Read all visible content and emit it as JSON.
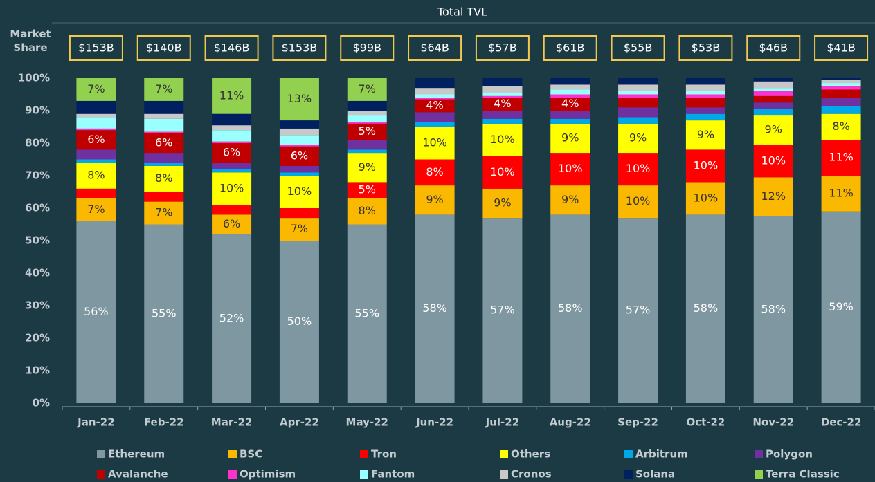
{
  "chart_data": {
    "type": "stacked_bar",
    "y_label": "Market Share",
    "categories": [
      "Jan-22",
      "Feb-22",
      "Mar-22",
      "Apr-22",
      "May-22",
      "Jun-22",
      "Jul-22",
      "Aug-22",
      "Sep-22",
      "Oct-22",
      "Nov-22",
      "Dec-22"
    ],
    "ylim": [
      0,
      100
    ],
    "yticks": [
      {
        "value": 0,
        "label": "0%"
      },
      {
        "value": 10,
        "label": "10%"
      },
      {
        "value": 20,
        "label": "20%"
      },
      {
        "value": 30,
        "label": "30%"
      },
      {
        "value": 40,
        "label": "40%"
      },
      {
        "value": 50,
        "label": "50%"
      },
      {
        "value": 60,
        "label": "60%"
      },
      {
        "value": 70,
        "label": "70%"
      },
      {
        "value": 80,
        "label": "80%"
      },
      {
        "value": 90,
        "label": "90%"
      },
      {
        "value": 100,
        "label": "100%"
      }
    ],
    "total_tvl": {
      "title": "Total TVL",
      "values": [
        153,
        140,
        146,
        153,
        99,
        64,
        57,
        61,
        55,
        53,
        46,
        41
      ],
      "value_labels": [
        "$153B",
        "$140B",
        "$146B",
        "$153B",
        "$99B",
        "$64B",
        "$57B",
        "$61B",
        "$55B",
        "$53B",
        "$46B",
        "$41B"
      ]
    },
    "series": [
      {
        "name": "Ethereum",
        "color": "#7f97a0",
        "values": [
          56,
          55,
          52,
          50,
          55,
          58,
          57,
          58,
          57,
          58,
          57.5,
          59
        ],
        "value_labels": [
          "56%",
          "55%",
          "52%",
          "50%",
          "55%",
          "58%",
          "57%",
          "58%",
          "57%",
          "58%",
          "58%",
          "59%"
        ]
      },
      {
        "name": "BSC",
        "color": "#fbb800",
        "values": [
          7,
          7,
          6,
          7,
          8,
          9,
          9,
          9,
          10,
          10,
          12,
          11
        ],
        "value_labels": [
          "7%",
          "7%",
          "6%",
          "7%",
          "8%",
          "9%",
          "9%",
          "9%",
          "10%",
          "10%",
          "12%",
          "11%"
        ]
      },
      {
        "name": "Tron",
        "color": "#ff0000",
        "values": [
          3,
          3,
          3,
          3,
          5,
          8,
          10,
          10,
          10,
          10,
          10,
          11
        ],
        "value_labels": [
          null,
          null,
          null,
          null,
          "5%",
          "8%",
          "10%",
          "10%",
          "10%",
          "10%",
          "10%",
          "11%"
        ]
      },
      {
        "name": "Others",
        "color": "#ffff00",
        "values": [
          8,
          8,
          10,
          10,
          9,
          10,
          10,
          9,
          9,
          9,
          9,
          8
        ],
        "value_labels": [
          "8%",
          "8%",
          "10%",
          "10%",
          "9%",
          "10%",
          "10%",
          "9%",
          "9%",
          "9%",
          "9%",
          "8%"
        ]
      },
      {
        "name": "Arbitrum",
        "color": "#00a8e8",
        "values": [
          1,
          1,
          1,
          1,
          1,
          1.5,
          1.5,
          1.5,
          2,
          2,
          2,
          2.5
        ],
        "value_labels": [
          null,
          null,
          null,
          null,
          null,
          null,
          null,
          null,
          null,
          null,
          null,
          null
        ]
      },
      {
        "name": "Polygon",
        "color": "#7030a0",
        "values": [
          3,
          3,
          2,
          2,
          3,
          3,
          2.5,
          2.5,
          3,
          2,
          2,
          2.5
        ],
        "value_labels": [
          null,
          null,
          null,
          null,
          null,
          null,
          null,
          null,
          null,
          null,
          null,
          null
        ]
      },
      {
        "name": "Avalanche",
        "color": "#c00000",
        "values": [
          6,
          6,
          6,
          6,
          5,
          4,
          4,
          4,
          3,
          3,
          2,
          2.5
        ],
        "value_labels": [
          "6%",
          "6%",
          "6%",
          "6%",
          "5%",
          "4%",
          "4%",
          "4%",
          null,
          null,
          null,
          null
        ]
      },
      {
        "name": "Optimism",
        "color": "#ff33cc",
        "values": [
          0.5,
          0.5,
          0.5,
          0.5,
          0.5,
          0.5,
          0.5,
          1,
          1,
          1,
          1.5,
          1
        ],
        "value_labels": [
          null,
          null,
          null,
          null,
          null,
          null,
          null,
          null,
          null,
          null,
          null,
          null
        ]
      },
      {
        "name": "Fantom",
        "color": "#99ffff",
        "values": [
          3.5,
          4,
          3.5,
          3,
          2,
          1,
          1,
          1.5,
          1,
          1,
          1,
          1
        ],
        "value_labels": [
          null,
          null,
          null,
          null,
          null,
          null,
          null,
          null,
          null,
          null,
          null,
          null
        ]
      },
      {
        "name": "Cronos",
        "color": "#c8c8c8",
        "values": [
          1,
          1.5,
          1.5,
          2,
          1.5,
          2,
          2,
          1.5,
          2,
          2,
          2,
          1
        ],
        "value_labels": [
          null,
          null,
          null,
          null,
          null,
          null,
          null,
          null,
          null,
          null,
          null,
          null
        ]
      },
      {
        "name": "Solana",
        "color": "#002060",
        "values": [
          4,
          4,
          3.5,
          2.5,
          3,
          3,
          2.5,
          2,
          2,
          2,
          1,
          0.5
        ],
        "value_labels": [
          null,
          null,
          null,
          null,
          null,
          null,
          null,
          null,
          null,
          null,
          null,
          null
        ]
      },
      {
        "name": "Terra Classic",
        "color": "#92d050",
        "values": [
          7,
          7,
          11,
          13,
          7,
          0,
          0,
          0,
          0,
          0,
          0,
          0
        ],
        "value_labels": [
          "7%",
          "7%",
          "11%",
          "13%",
          "7%",
          null,
          null,
          null,
          null,
          null,
          null,
          null
        ]
      }
    ]
  }
}
